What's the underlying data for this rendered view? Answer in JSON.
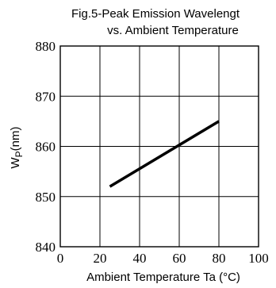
{
  "chart_data": {
    "type": "line",
    "title": "Fig.5-Peak Emission Wavelengt",
    "subtitle": "vs. Ambient Temperature",
    "xlabel": "Ambient Temperature Ta (°C)",
    "ylabel_main": "W",
    "ylabel_sub": "P",
    "ylabel_unit": "(nm)",
    "xlim": [
      0,
      100
    ],
    "ylim": [
      840,
      880
    ],
    "xticks": [
      0,
      20,
      40,
      60,
      80,
      100
    ],
    "yticks": [
      840,
      850,
      860,
      870,
      880
    ],
    "grid": true,
    "series": [
      {
        "x": [
          25,
          80
        ],
        "y": [
          852,
          865
        ]
      }
    ]
  },
  "colors": {
    "line": "#000000",
    "grid": "#000000",
    "axis": "#000000"
  }
}
